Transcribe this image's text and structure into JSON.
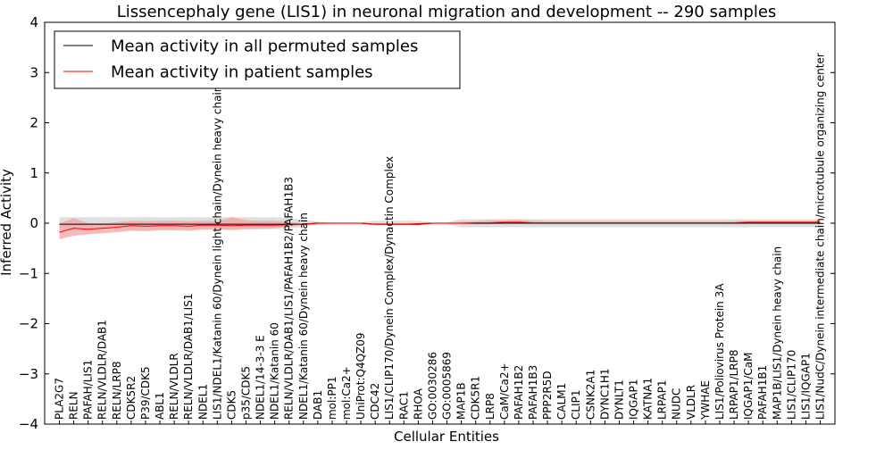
{
  "chart_data": {
    "type": "line",
    "title": "Lissencephaly gene (LIS1) in neuronal migration and development -- 290 samples",
    "xlabel": "Cellular Entities",
    "ylabel": "Inferred Activity",
    "ylim": [
      -4,
      4
    ],
    "yticks": [
      4,
      3,
      2,
      1,
      0,
      -1,
      -2,
      -3,
      -4
    ],
    "ytick_labels": [
      "4",
      "3",
      "2",
      "1",
      "0",
      "−1",
      "−2",
      "−3",
      "−4"
    ],
    "legend_position": "top-left",
    "categories": [
      "PLA2G7",
      "RELN",
      "PAFAH/LIS1",
      "RELN/VLDLR/DAB1",
      "RELN/LRP8",
      "CDK5R2",
      "P39/CDK5",
      "ABL1",
      "RELN/VLDLR",
      "RELN/VLDLR/DAB1/LIS1",
      "NDEL1",
      "LIS1/NDEL1/Katanin 60/Dynein light chain/Dynein heavy chain",
      "CDK5",
      "p35/CDK5",
      "NDEL1/14-3-3 E",
      "NDEL1/Katanin 60",
      "RELN/VLDLR/DAB1/LIS1/PAFAH1B2/PAFAH1B3",
      "NDEL1/Katanin 60/Dynein heavy chain",
      "DAB1",
      "mol:PP1",
      "mol:Ca2+",
      "UniProt:Q4QZ09",
      "CDC42",
      "LIS1/CLIP170/Dynein Complex/Dynactin Complex",
      "RAC1",
      "RHOA",
      "GO:0030286",
      "GO:0005869",
      "MAP1B",
      "CDK5R1",
      "LRP8",
      "CaM/Ca2+",
      "PAFAH1B2",
      "PAFAH1B3",
      "PPP2R5D",
      "CALM1",
      "CLIP1",
      "CSNK2A1",
      "DYNC1H1",
      "DYNLT1",
      "IQGAP1",
      "KATNA1",
      "LRPAP1",
      "NUDC",
      "VLDLR",
      "YWHAE",
      "LIS1/Poliovirus Protein 3A",
      "LRPAP1/LRP8",
      "IQGAP1/CaM",
      "PAFAH1B1",
      "MAP1B/LIS1/Dynein heavy chain",
      "LIS1/CLIP170",
      "LIS1/IQGAP1",
      "LIS1/NudC/Dynein intermediate chain/microtubule organizing center"
    ],
    "series": [
      {
        "name": "Mean activity in all permuted samples",
        "color": "#000000",
        "values": [
          -0.02,
          -0.02,
          -0.02,
          -0.02,
          -0.02,
          -0.02,
          -0.02,
          -0.02,
          -0.02,
          -0.02,
          -0.02,
          -0.02,
          -0.02,
          -0.02,
          -0.02,
          -0.02,
          -0.02,
          -0.02,
          0.0,
          0.0,
          0.0,
          0.0,
          -0.02,
          -0.02,
          -0.02,
          -0.02,
          0.0,
          0.0,
          0.0,
          0.0,
          0.0,
          0.0,
          0.0,
          0.0,
          0.0,
          0.0,
          0.0,
          0.0,
          0.0,
          0.0,
          0.0,
          0.0,
          0.0,
          0.0,
          0.0,
          0.0,
          0.0,
          0.0,
          0.0,
          0.0,
          0.0,
          0.0,
          0.0,
          0.0
        ],
        "band_low": [
          -0.12,
          -0.12,
          -0.12,
          -0.12,
          -0.12,
          -0.12,
          -0.12,
          -0.12,
          -0.12,
          -0.12,
          -0.12,
          -0.12,
          -0.12,
          -0.12,
          -0.12,
          -0.12,
          -0.1,
          -0.07,
          -0.03,
          -0.02,
          -0.02,
          -0.02,
          -0.05,
          -0.05,
          -0.05,
          -0.05,
          -0.02,
          -0.02,
          -0.08,
          -0.08,
          -0.08,
          -0.08,
          -0.08,
          -0.08,
          -0.08,
          -0.08,
          -0.08,
          -0.08,
          -0.08,
          -0.08,
          -0.08,
          -0.08,
          -0.08,
          -0.08,
          -0.08,
          -0.08,
          -0.08,
          -0.08,
          -0.08,
          -0.08,
          -0.08,
          -0.08,
          -0.08,
          -0.08
        ],
        "band_high": [
          0.12,
          0.12,
          0.12,
          0.12,
          0.12,
          0.12,
          0.12,
          0.12,
          0.12,
          0.12,
          0.12,
          0.12,
          0.12,
          0.12,
          0.12,
          0.12,
          0.1,
          0.07,
          0.03,
          0.02,
          0.02,
          0.02,
          0.05,
          0.05,
          0.05,
          0.05,
          0.02,
          0.02,
          0.08,
          0.08,
          0.08,
          0.08,
          0.08,
          0.08,
          0.08,
          0.08,
          0.08,
          0.08,
          0.08,
          0.08,
          0.08,
          0.08,
          0.08,
          0.08,
          0.08,
          0.08,
          0.08,
          0.08,
          0.08,
          0.08,
          0.08,
          0.08,
          0.08,
          0.08
        ],
        "band_color": "#d9d9d9"
      },
      {
        "name": "Mean activity in patient samples",
        "color": "#ff0000",
        "values": [
          -0.18,
          -0.1,
          -0.12,
          -0.1,
          -0.08,
          -0.05,
          -0.06,
          -0.05,
          -0.05,
          -0.06,
          -0.04,
          -0.04,
          -0.05,
          -0.04,
          -0.04,
          -0.04,
          -0.03,
          -0.02,
          0.0,
          0.0,
          0.0,
          0.0,
          -0.02,
          -0.02,
          -0.02,
          -0.01,
          0.0,
          0.0,
          0.0,
          0.01,
          0.01,
          0.02,
          0.02,
          0.01,
          0.01,
          0.01,
          0.01,
          0.01,
          0.01,
          0.01,
          0.01,
          0.01,
          0.01,
          0.01,
          0.01,
          0.01,
          0.01,
          0.01,
          0.02,
          0.02,
          0.02,
          0.02,
          0.02,
          0.02
        ],
        "band_low": [
          -0.32,
          -0.25,
          -0.22,
          -0.2,
          -0.18,
          -0.15,
          -0.16,
          -0.14,
          -0.14,
          -0.15,
          -0.13,
          -0.12,
          -0.14,
          -0.12,
          -0.11,
          -0.1,
          -0.07,
          -0.04,
          -0.02,
          -0.01,
          -0.01,
          -0.01,
          -0.04,
          -0.04,
          -0.04,
          -0.03,
          -0.01,
          -0.01,
          -0.02,
          -0.02,
          -0.02,
          -0.01,
          -0.01,
          -0.01,
          -0.01,
          -0.01,
          -0.01,
          -0.01,
          -0.01,
          -0.01,
          -0.01,
          -0.01,
          -0.01,
          -0.01,
          -0.01,
          -0.01,
          -0.01,
          -0.01,
          -0.01,
          -0.01,
          -0.01,
          -0.01,
          -0.01,
          -0.01
        ],
        "band_high": [
          0.0,
          0.1,
          0.0,
          0.0,
          0.02,
          0.05,
          0.04,
          0.05,
          0.05,
          0.04,
          0.05,
          0.04,
          0.12,
          0.06,
          0.05,
          0.05,
          0.02,
          0.0,
          0.02,
          0.01,
          0.01,
          0.01,
          0.0,
          0.0,
          0.0,
          0.01,
          0.01,
          0.01,
          0.03,
          0.04,
          0.06,
          0.06,
          0.07,
          0.05,
          0.04,
          0.04,
          0.04,
          0.04,
          0.04,
          0.04,
          0.04,
          0.04,
          0.04,
          0.04,
          0.04,
          0.04,
          0.04,
          0.04,
          0.05,
          0.05,
          0.05,
          0.05,
          0.05,
          0.05
        ],
        "band_color": "#f4a3a3"
      }
    ]
  }
}
